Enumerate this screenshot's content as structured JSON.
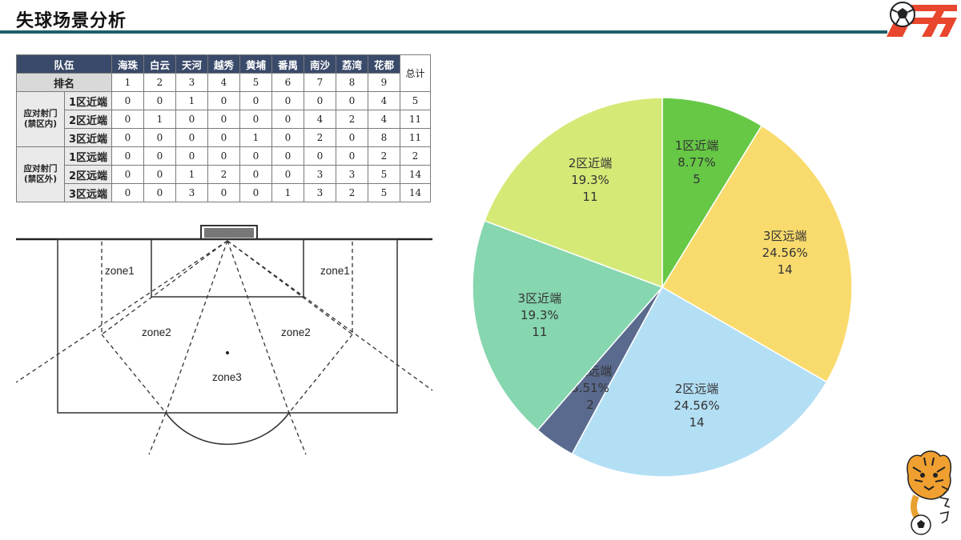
{
  "page": {
    "title": "失球场景分析"
  },
  "table": {
    "team_header": "队伍",
    "rank_header": "排名",
    "total_header": "总计",
    "teams": [
      "海珠",
      "白云",
      "天河",
      "越秀",
      "黄埔",
      "番禺",
      "南沙",
      "荔湾",
      "花都"
    ],
    "ranks": [
      "1",
      "2",
      "3",
      "4",
      "5",
      "6",
      "7",
      "8",
      "9"
    ],
    "groups": [
      {
        "label": [
          "应对射门",
          "(禁区内)"
        ],
        "rows": [
          {
            "zone": "1区近端",
            "values": [
              "0",
              "0",
              "1",
              "0",
              "0",
              "0",
              "0",
              "0",
              "4"
            ],
            "total": "5"
          },
          {
            "zone": "2区近端",
            "values": [
              "0",
              "1",
              "0",
              "0",
              "0",
              "0",
              "4",
              "2",
              "4"
            ],
            "total": "11"
          },
          {
            "zone": "3区近端",
            "values": [
              "0",
              "0",
              "0",
              "0",
              "1",
              "0",
              "2",
              "0",
              "8"
            ],
            "total": "11"
          }
        ]
      },
      {
        "label": [
          "应对射门",
          "(禁区外)"
        ],
        "rows": [
          {
            "zone": "1区远端",
            "values": [
              "0",
              "0",
              "0",
              "0",
              "0",
              "0",
              "0",
              "0",
              "2"
            ],
            "total": "2"
          },
          {
            "zone": "2区远端",
            "values": [
              "0",
              "0",
              "1",
              "2",
              "0",
              "0",
              "3",
              "3",
              "5"
            ],
            "total": "14"
          },
          {
            "zone": "3区远端",
            "values": [
              "0",
              "0",
              "3",
              "0",
              "0",
              "1",
              "3",
              "2",
              "5"
            ],
            "total": "14"
          }
        ]
      }
    ]
  },
  "field_diagram": {
    "labels": {
      "zone1_left": "zone1",
      "zone1_right": "zone1",
      "zone2_left": "zone2",
      "zone2_right": "zone2",
      "zone3": "zone3"
    }
  },
  "chart_data": {
    "type": "pie",
    "slices": [
      {
        "label": "1区近端",
        "percent": "8.77%",
        "value": 5,
        "color": "#66c845"
      },
      {
        "label": "3区远端",
        "percent": "24.56%",
        "value": 14,
        "color": "#f9db6d"
      },
      {
        "label": "2区远端",
        "percent": "24.56%",
        "value": 14,
        "color": "#b3dff5"
      },
      {
        "label": "1区远端",
        "percent": "3.51%",
        "value": 2,
        "color": "#5a6a8e"
      },
      {
        "label": "3区近端",
        "percent": "19.3%",
        "value": 11,
        "color": "#86d6af"
      },
      {
        "label": "2区近端",
        "percent": "19.3%",
        "value": 11,
        "color": "#d5e977"
      }
    ],
    "start_angle_deg": 0,
    "direction": "clockwise"
  }
}
